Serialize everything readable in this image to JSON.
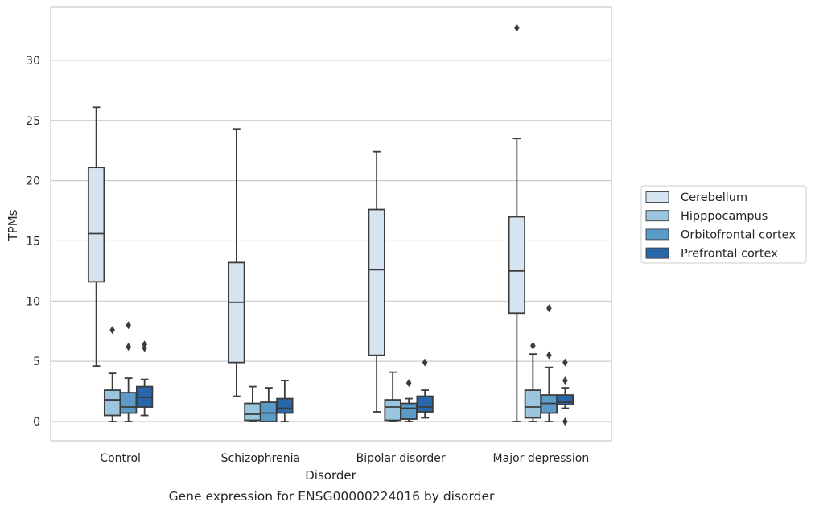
{
  "chart_data": {
    "type": "box",
    "title": "",
    "caption": "Gene expression for ENSG00000224016 by disorder",
    "xlabel": "Disorder",
    "ylabel": "TPMs",
    "ylim": [
      -1.6,
      34.4
    ],
    "yticks": [
      "0",
      "5",
      "10",
      "15",
      "20",
      "25",
      "30"
    ],
    "grid": "horizontal",
    "legend_position": "right",
    "categories": [
      "Control",
      "Schizophrenia",
      "Bipolar disorder",
      "Major depression"
    ],
    "series": [
      {
        "name": "Cerebellum",
        "color": "#d6e4f2",
        "boxes": [
          {
            "low": 4.6,
            "q1": 11.6,
            "median": 15.6,
            "q3": 21.1,
            "high": 26.1,
            "outliers": []
          },
          {
            "low": 2.1,
            "q1": 4.9,
            "median": 9.9,
            "q3": 13.2,
            "high": 24.3,
            "outliers": []
          },
          {
            "low": 0.8,
            "q1": 5.5,
            "median": 12.6,
            "q3": 17.6,
            "high": 22.4,
            "outliers": []
          },
          {
            "low": 0.0,
            "q1": 9.0,
            "median": 12.5,
            "q3": 17.0,
            "high": 23.5,
            "outliers": [
              32.7
            ]
          }
        ]
      },
      {
        "name": "Hipppocampus",
        "color": "#9ac6e0",
        "boxes": [
          {
            "low": 0.0,
            "q1": 0.5,
            "median": 1.8,
            "q3": 2.6,
            "high": 4.0,
            "outliers": [
              7.6
            ]
          },
          {
            "low": 0.0,
            "q1": 0.1,
            "median": 0.6,
            "q3": 1.5,
            "high": 2.9,
            "outliers": []
          },
          {
            "low": 0.0,
            "q1": 0.1,
            "median": 1.2,
            "q3": 1.8,
            "high": 4.1,
            "outliers": []
          },
          {
            "low": 0.0,
            "q1": 0.3,
            "median": 1.2,
            "q3": 2.6,
            "high": 5.6,
            "outliers": [
              6.3
            ]
          }
        ]
      },
      {
        "name": "Orbitofrontal cortex",
        "color": "#5a9bc9",
        "boxes": [
          {
            "low": 0.0,
            "q1": 0.7,
            "median": 1.2,
            "q3": 2.4,
            "high": 3.6,
            "outliers": [
              6.2,
              8.0
            ]
          },
          {
            "low": 0.0,
            "q1": 0.0,
            "median": 0.7,
            "q3": 1.6,
            "high": 2.8,
            "outliers": []
          },
          {
            "low": 0.0,
            "q1": 0.2,
            "median": 1.1,
            "q3": 1.5,
            "high": 1.9,
            "outliers": [
              3.2
            ]
          },
          {
            "low": 0.0,
            "q1": 0.7,
            "median": 1.5,
            "q3": 2.2,
            "high": 4.5,
            "outliers": [
              5.5,
              9.4
            ]
          }
        ]
      },
      {
        "name": "Prefrontal cortex",
        "color": "#2a67a8",
        "boxes": [
          {
            "low": 0.5,
            "q1": 1.2,
            "median": 2.0,
            "q3": 2.9,
            "high": 3.5,
            "outliers": [
              6.1,
              6.4
            ]
          },
          {
            "low": 0.0,
            "q1": 0.7,
            "median": 1.1,
            "q3": 1.9,
            "high": 3.4,
            "outliers": []
          },
          {
            "low": 0.3,
            "q1": 0.8,
            "median": 1.2,
            "q3": 2.1,
            "high": 2.6,
            "outliers": [
              4.9
            ]
          },
          {
            "low": 1.1,
            "q1": 1.4,
            "median": 1.6,
            "q3": 2.2,
            "high": 2.8,
            "outliers": [
              0.0,
              3.4,
              4.9
            ]
          }
        ]
      }
    ]
  }
}
